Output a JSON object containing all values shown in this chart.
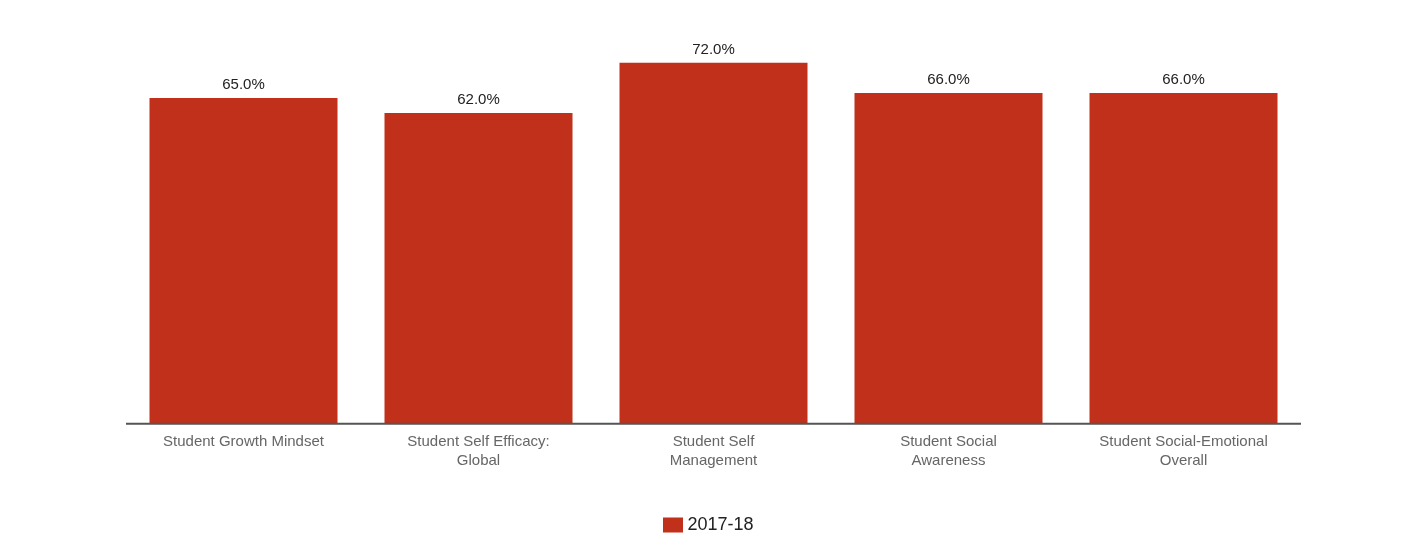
{
  "chart_data": {
    "type": "bar",
    "categories": [
      "Student Growth Mindset",
      "Student Self Efficacy: Global",
      "Student Self Management",
      "Student Social Awareness",
      "Student Social-Emotional Overall"
    ],
    "series": [
      {
        "name": "2017-18",
        "color": "#c0301a",
        "values": [
          65,
          62,
          72,
          66,
          66
        ],
        "value_labels": [
          "65.0%",
          "62.0%",
          "72.0%",
          "66.0%",
          "66.0%"
        ]
      }
    ],
    "legend": "bottom",
    "grid": false
  }
}
